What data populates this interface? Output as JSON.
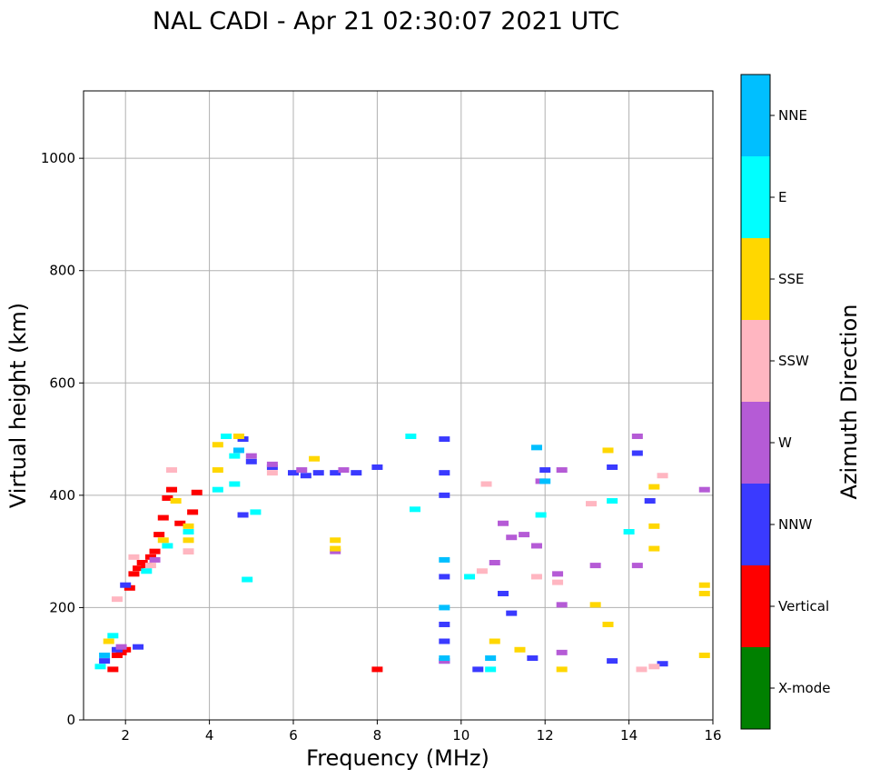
{
  "chart_data": {
    "type": "scatter",
    "title": "NAL CADI - Apr 21 02:30:07 2021 UTC",
    "xlabel": "Frequency (MHz)",
    "ylabel": "Virtual height (km)",
    "xlim": [
      1,
      16
    ],
    "ylim": [
      0,
      1120
    ],
    "xticks": [
      2,
      4,
      6,
      8,
      10,
      12,
      14,
      16
    ],
    "yticks": [
      0,
      200,
      400,
      600,
      800,
      1000
    ],
    "grid": true,
    "colorbar": {
      "label": "Azimuth Direction",
      "categories": [
        {
          "name": "X-mode",
          "color": "#008000"
        },
        {
          "name": "Vertical",
          "color": "#ff0000"
        },
        {
          "name": "NNW",
          "color": "#3a3aff"
        },
        {
          "name": "W",
          "color": "#b55bd6"
        },
        {
          "name": "SSW",
          "color": "#ffb6c1"
        },
        {
          "name": "SSE",
          "color": "#ffd700"
        },
        {
          "name": "E",
          "color": "#00ffff"
        },
        {
          "name": "NNE",
          "color": "#00bfff"
        }
      ]
    },
    "series": [
      {
        "name": "Vertical",
        "points": [
          [
            1.7,
            90
          ],
          [
            1.8,
            115
          ],
          [
            1.9,
            120
          ],
          [
            2.0,
            125
          ],
          [
            2.1,
            235
          ],
          [
            2.2,
            260
          ],
          [
            2.3,
            270
          ],
          [
            2.4,
            280
          ],
          [
            2.5,
            275
          ],
          [
            2.6,
            290
          ],
          [
            2.7,
            300
          ],
          [
            2.8,
            330
          ],
          [
            2.9,
            360
          ],
          [
            3.0,
            395
          ],
          [
            3.1,
            410
          ],
          [
            3.3,
            350
          ],
          [
            3.5,
            300
          ],
          [
            3.6,
            370
          ],
          [
            3.7,
            405
          ],
          [
            8.0,
            90
          ]
        ]
      },
      {
        "name": "NNW",
        "points": [
          [
            1.5,
            105
          ],
          [
            1.8,
            125
          ],
          [
            2.0,
            240
          ],
          [
            2.3,
            130
          ],
          [
            4.8,
            500
          ],
          [
            4.8,
            365
          ],
          [
            5.0,
            460
          ],
          [
            5.5,
            450
          ],
          [
            6.0,
            440
          ],
          [
            6.3,
            435
          ],
          [
            6.6,
            440
          ],
          [
            7.0,
            440
          ],
          [
            7.5,
            440
          ],
          [
            8.0,
            450
          ],
          [
            9.6,
            500
          ],
          [
            9.6,
            440
          ],
          [
            9.6,
            400
          ],
          [
            9.6,
            255
          ],
          [
            9.6,
            170
          ],
          [
            9.6,
            140
          ],
          [
            9.6,
            105
          ],
          [
            10.4,
            90
          ],
          [
            11.0,
            225
          ],
          [
            11.2,
            190
          ],
          [
            11.7,
            110
          ],
          [
            12.0,
            445
          ],
          [
            13.6,
            450
          ],
          [
            13.6,
            105
          ],
          [
            14.2,
            475
          ],
          [
            14.5,
            390
          ],
          [
            14.8,
            100
          ]
        ]
      },
      {
        "name": "W",
        "points": [
          [
            1.9,
            130
          ],
          [
            2.7,
            285
          ],
          [
            5.0,
            470
          ],
          [
            5.5,
            455
          ],
          [
            6.2,
            445
          ],
          [
            7.0,
            300
          ],
          [
            7.2,
            445
          ],
          [
            9.6,
            105
          ],
          [
            10.8,
            280
          ],
          [
            11.0,
            350
          ],
          [
            11.2,
            325
          ],
          [
            11.5,
            330
          ],
          [
            11.8,
            310
          ],
          [
            11.9,
            425
          ],
          [
            12.3,
            260
          ],
          [
            12.4,
            445
          ],
          [
            12.4,
            205
          ],
          [
            12.4,
            120
          ],
          [
            13.2,
            275
          ],
          [
            14.2,
            505
          ],
          [
            14.2,
            275
          ],
          [
            15.8,
            410
          ]
        ]
      },
      {
        "name": "SSW",
        "points": [
          [
            1.8,
            215
          ],
          [
            2.2,
            290
          ],
          [
            2.6,
            275
          ],
          [
            3.1,
            445
          ],
          [
            3.5,
            300
          ],
          [
            5.5,
            440
          ],
          [
            10.5,
            265
          ],
          [
            10.6,
            420
          ],
          [
            11.8,
            255
          ],
          [
            12.3,
            245
          ],
          [
            13.1,
            385
          ],
          [
            14.3,
            90
          ],
          [
            14.6,
            95
          ],
          [
            14.8,
            435
          ]
        ]
      },
      {
        "name": "SSE",
        "points": [
          [
            1.6,
            140
          ],
          [
            2.9,
            320
          ],
          [
            3.2,
            390
          ],
          [
            3.5,
            320
          ],
          [
            3.5,
            345
          ],
          [
            4.2,
            490
          ],
          [
            4.2,
            445
          ],
          [
            4.7,
            505
          ],
          [
            6.5,
            465
          ],
          [
            7.0,
            320
          ],
          [
            7.0,
            305
          ],
          [
            10.8,
            140
          ],
          [
            11.4,
            125
          ],
          [
            12.4,
            90
          ],
          [
            13.2,
            205
          ],
          [
            13.5,
            480
          ],
          [
            13.5,
            170
          ],
          [
            14.6,
            415
          ],
          [
            14.6,
            345
          ],
          [
            14.6,
            305
          ],
          [
            15.8,
            240
          ],
          [
            15.8,
            225
          ],
          [
            15.8,
            115
          ]
        ]
      },
      {
        "name": "E",
        "points": [
          [
            1.4,
            95
          ],
          [
            1.7,
            150
          ],
          [
            2.5,
            265
          ],
          [
            3.0,
            310
          ],
          [
            3.5,
            335
          ],
          [
            4.2,
            410
          ],
          [
            4.4,
            505
          ],
          [
            4.6,
            420
          ],
          [
            4.6,
            470
          ],
          [
            4.9,
            250
          ],
          [
            5.1,
            370
          ],
          [
            8.8,
            505
          ],
          [
            8.9,
            375
          ],
          [
            10.2,
            255
          ],
          [
            10.7,
            90
          ],
          [
            11.9,
            365
          ],
          [
            13.6,
            390
          ],
          [
            14.0,
            335
          ]
        ]
      },
      {
        "name": "NNE",
        "points": [
          [
            1.5,
            115
          ],
          [
            4.7,
            480
          ],
          [
            9.6,
            285
          ],
          [
            9.6,
            200
          ],
          [
            9.6,
            110
          ],
          [
            10.7,
            110
          ],
          [
            11.8,
            485
          ],
          [
            12.0,
            425
          ]
        ]
      }
    ]
  }
}
